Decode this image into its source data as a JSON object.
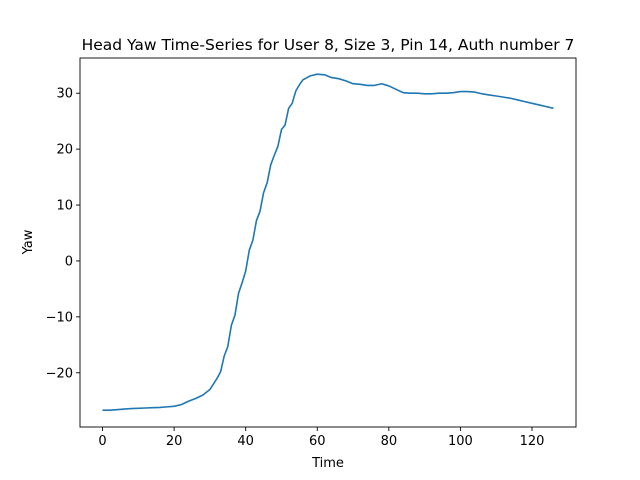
{
  "chart_data": {
    "type": "line",
    "title": "Head Yaw Time-Series for User 8, Size 3, Pin 14, Auth number 7",
    "xlabel": "Time",
    "ylabel": "Yaw",
    "xlim": [
      -6.3,
      132.3
    ],
    "ylim": [
      -29.7,
      36.3
    ],
    "xticks": [
      0,
      20,
      40,
      60,
      80,
      100,
      120
    ],
    "yticks": [
      -20,
      -10,
      0,
      10,
      20,
      30
    ],
    "ytick_labels": [
      "−20",
      "−10",
      "0",
      "10",
      "20",
      "30"
    ],
    "grid": false,
    "legend": "none",
    "line_color": "#1f77b4",
    "series": [
      {
        "x": [
          0,
          2,
          4,
          6,
          8,
          10,
          12,
          14,
          16,
          18,
          20,
          22,
          24,
          26,
          28,
          30,
          31,
          32,
          33,
          34,
          35,
          36,
          37,
          38,
          39,
          40,
          41,
          42,
          43,
          44,
          45,
          46,
          47,
          48,
          49,
          50,
          51,
          52,
          53,
          54,
          55,
          56,
          58,
          60,
          62,
          64,
          66,
          68,
          70,
          72,
          74,
          76,
          78,
          80,
          82,
          84,
          86,
          88,
          90,
          92,
          94,
          96,
          98,
          100,
          102,
          104,
          106,
          108,
          110,
          112,
          114,
          116,
          118,
          120,
          122,
          124,
          126
        ],
        "y": [
          -26.7,
          -26.7,
          -26.6,
          -26.5,
          -26.4,
          -26.35,
          -26.3,
          -26.25,
          -26.2,
          -26.1,
          -26.0,
          -25.7,
          -25.1,
          -24.6,
          -24.0,
          -23.0,
          -22.0,
          -21.0,
          -19.8,
          -17.0,
          -15.3,
          -11.5,
          -9.7,
          -5.8,
          -3.9,
          -1.8,
          1.9,
          3.7,
          7.2,
          8.9,
          12.2,
          14.0,
          17.2,
          18.9,
          20.5,
          23.5,
          24.3,
          27.3,
          28.2,
          30.4,
          31.5,
          32.4,
          33.1,
          33.4,
          33.3,
          32.8,
          32.6,
          32.2,
          31.7,
          31.6,
          31.4,
          31.4,
          31.7,
          31.3,
          30.7,
          30.1,
          30.0,
          30.0,
          29.9,
          29.9,
          30.0,
          30.0,
          30.1,
          30.3,
          30.3,
          30.2,
          29.9,
          29.7,
          29.5,
          29.3,
          29.1,
          28.8,
          28.5,
          28.2,
          27.9,
          27.6,
          27.3
        ]
      }
    ]
  }
}
